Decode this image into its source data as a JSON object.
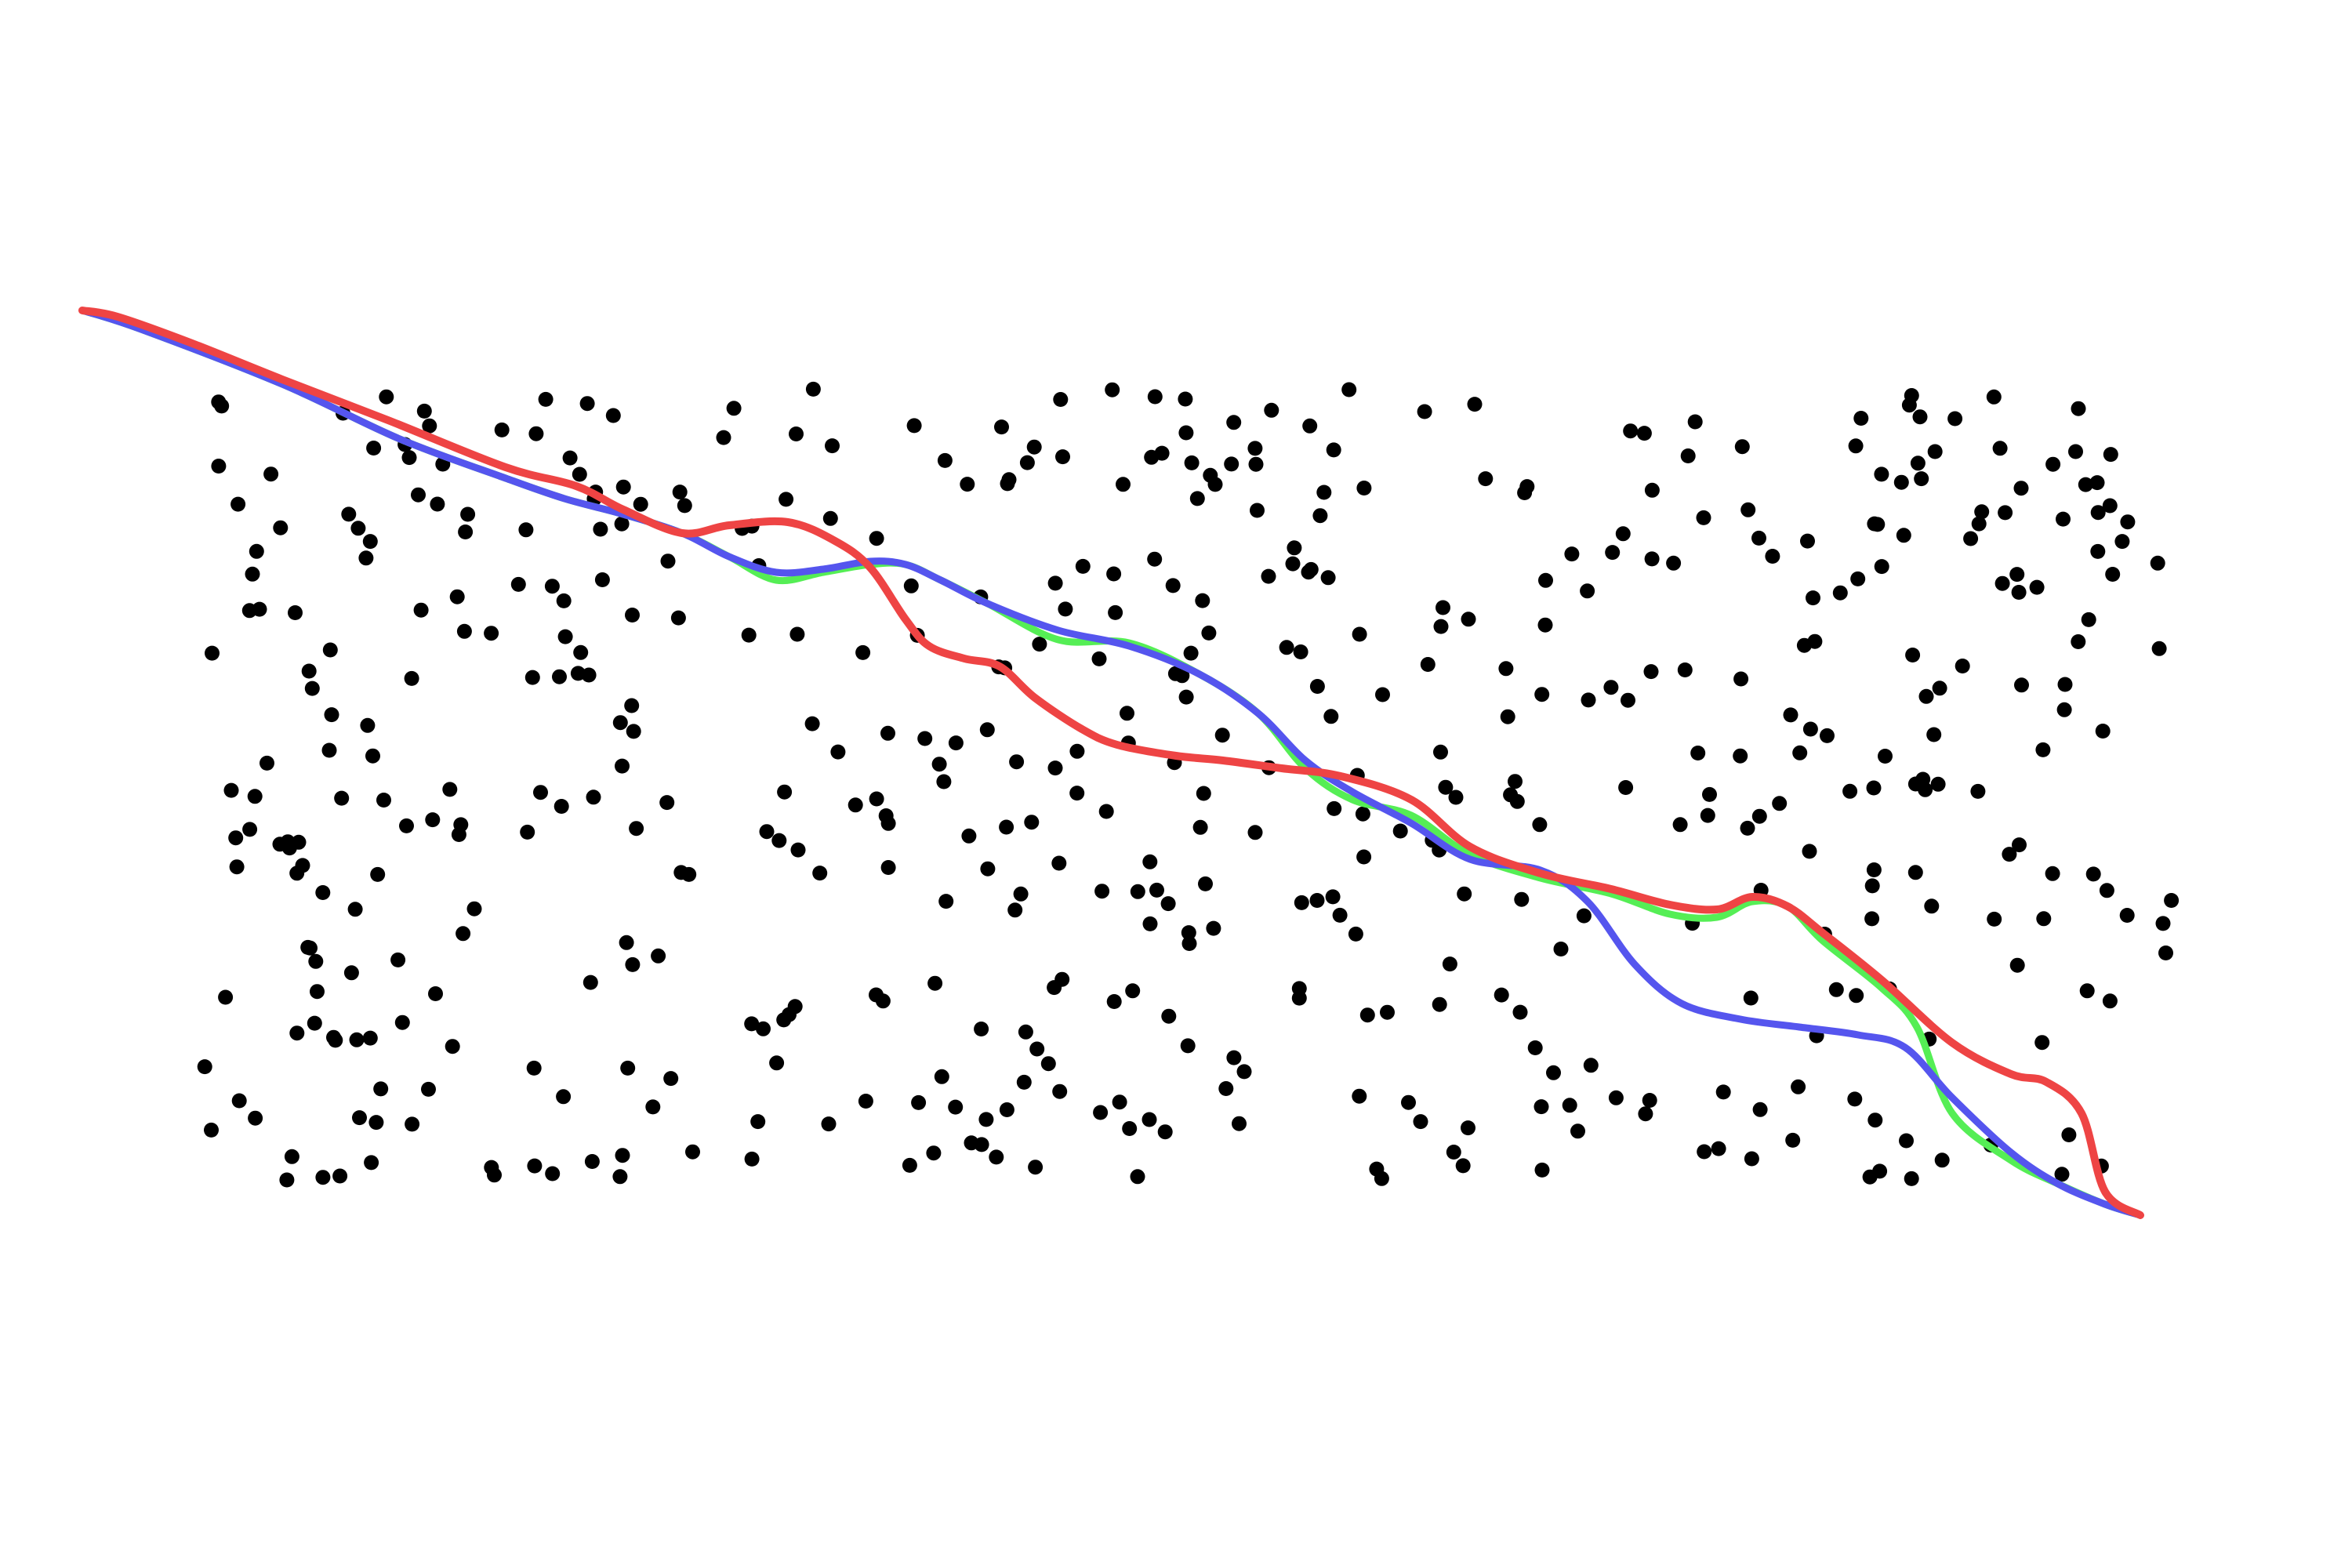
{
  "diagram": {
    "kind": "path planning through obstacle field",
    "background_color": "#ffffff",
    "obstacle_color": "#000000",
    "obstacle_count": 540,
    "random_seed": 20240611,
    "paths": [
      {
        "id": "green",
        "color": "#55ee55",
        "points": [
          [
            0.035,
            0.198
          ],
          [
            0.06,
            0.21
          ],
          [
            0.12,
            0.245
          ],
          [
            0.17,
            0.28
          ],
          [
            0.215,
            0.305
          ],
          [
            0.24,
            0.318
          ],
          [
            0.265,
            0.328
          ],
          [
            0.29,
            0.34
          ],
          [
            0.31,
            0.355
          ],
          [
            0.33,
            0.37
          ],
          [
            0.35,
            0.365
          ],
          [
            0.37,
            0.36
          ],
          [
            0.385,
            0.36
          ],
          [
            0.4,
            0.37
          ],
          [
            0.42,
            0.385
          ],
          [
            0.45,
            0.408
          ],
          [
            0.48,
            0.41
          ],
          [
            0.51,
            0.43
          ],
          [
            0.535,
            0.455
          ],
          [
            0.555,
            0.49
          ],
          [
            0.575,
            0.51
          ],
          [
            0.6,
            0.52
          ],
          [
            0.625,
            0.545
          ],
          [
            0.655,
            0.56
          ],
          [
            0.685,
            0.57
          ],
          [
            0.71,
            0.583
          ],
          [
            0.73,
            0.585
          ],
          [
            0.745,
            0.575
          ],
          [
            0.76,
            0.578
          ],
          [
            0.775,
            0.6
          ],
          [
            0.8,
            0.63
          ],
          [
            0.815,
            0.655
          ],
          [
            0.83,
            0.71
          ],
          [
            0.855,
            0.74
          ],
          [
            0.875,
            0.755
          ],
          [
            0.895,
            0.768
          ],
          [
            0.91,
            0.775
          ]
        ]
      },
      {
        "id": "blue",
        "color": "#5555ee",
        "points": [
          [
            0.035,
            0.198
          ],
          [
            0.06,
            0.21
          ],
          [
            0.12,
            0.245
          ],
          [
            0.17,
            0.28
          ],
          [
            0.215,
            0.305
          ],
          [
            0.24,
            0.318
          ],
          [
            0.265,
            0.328
          ],
          [
            0.29,
            0.34
          ],
          [
            0.31,
            0.355
          ],
          [
            0.33,
            0.365
          ],
          [
            0.35,
            0.363
          ],
          [
            0.37,
            0.358
          ],
          [
            0.385,
            0.36
          ],
          [
            0.4,
            0.37
          ],
          [
            0.42,
            0.385
          ],
          [
            0.45,
            0.402
          ],
          [
            0.48,
            0.412
          ],
          [
            0.51,
            0.43
          ],
          [
            0.535,
            0.455
          ],
          [
            0.555,
            0.485
          ],
          [
            0.575,
            0.505
          ],
          [
            0.6,
            0.525
          ],
          [
            0.625,
            0.548
          ],
          [
            0.655,
            0.555
          ],
          [
            0.675,
            0.575
          ],
          [
            0.695,
            0.615
          ],
          [
            0.715,
            0.64
          ],
          [
            0.74,
            0.65
          ],
          [
            0.765,
            0.655
          ],
          [
            0.79,
            0.66
          ],
          [
            0.81,
            0.668
          ],
          [
            0.83,
            0.7
          ],
          [
            0.855,
            0.735
          ],
          [
            0.875,
            0.755
          ],
          [
            0.895,
            0.768
          ],
          [
            0.91,
            0.775
          ]
        ]
      },
      {
        "id": "red",
        "color": "#ee4444",
        "points": [
          [
            0.035,
            0.198
          ],
          [
            0.05,
            0.202
          ],
          [
            0.08,
            0.218
          ],
          [
            0.12,
            0.242
          ],
          [
            0.165,
            0.268
          ],
          [
            0.215,
            0.298
          ],
          [
            0.245,
            0.31
          ],
          [
            0.265,
            0.325
          ],
          [
            0.29,
            0.34
          ],
          [
            0.31,
            0.335
          ],
          [
            0.335,
            0.333
          ],
          [
            0.355,
            0.345
          ],
          [
            0.37,
            0.362
          ],
          [
            0.385,
            0.395
          ],
          [
            0.395,
            0.412
          ],
          [
            0.41,
            0.42
          ],
          [
            0.425,
            0.425
          ],
          [
            0.44,
            0.445
          ],
          [
            0.46,
            0.465
          ],
          [
            0.475,
            0.475
          ],
          [
            0.5,
            0.482
          ],
          [
            0.52,
            0.485
          ],
          [
            0.545,
            0.49
          ],
          [
            0.57,
            0.495
          ],
          [
            0.6,
            0.51
          ],
          [
            0.625,
            0.54
          ],
          [
            0.655,
            0.557
          ],
          [
            0.685,
            0.567
          ],
          [
            0.71,
            0.577
          ],
          [
            0.73,
            0.58
          ],
          [
            0.745,
            0.572
          ],
          [
            0.76,
            0.578
          ],
          [
            0.775,
            0.595
          ],
          [
            0.8,
            0.625
          ],
          [
            0.83,
            0.665
          ],
          [
            0.855,
            0.685
          ],
          [
            0.87,
            0.69
          ],
          [
            0.885,
            0.71
          ],
          [
            0.895,
            0.76
          ],
          [
            0.91,
            0.775
          ]
        ]
      }
    ]
  }
}
